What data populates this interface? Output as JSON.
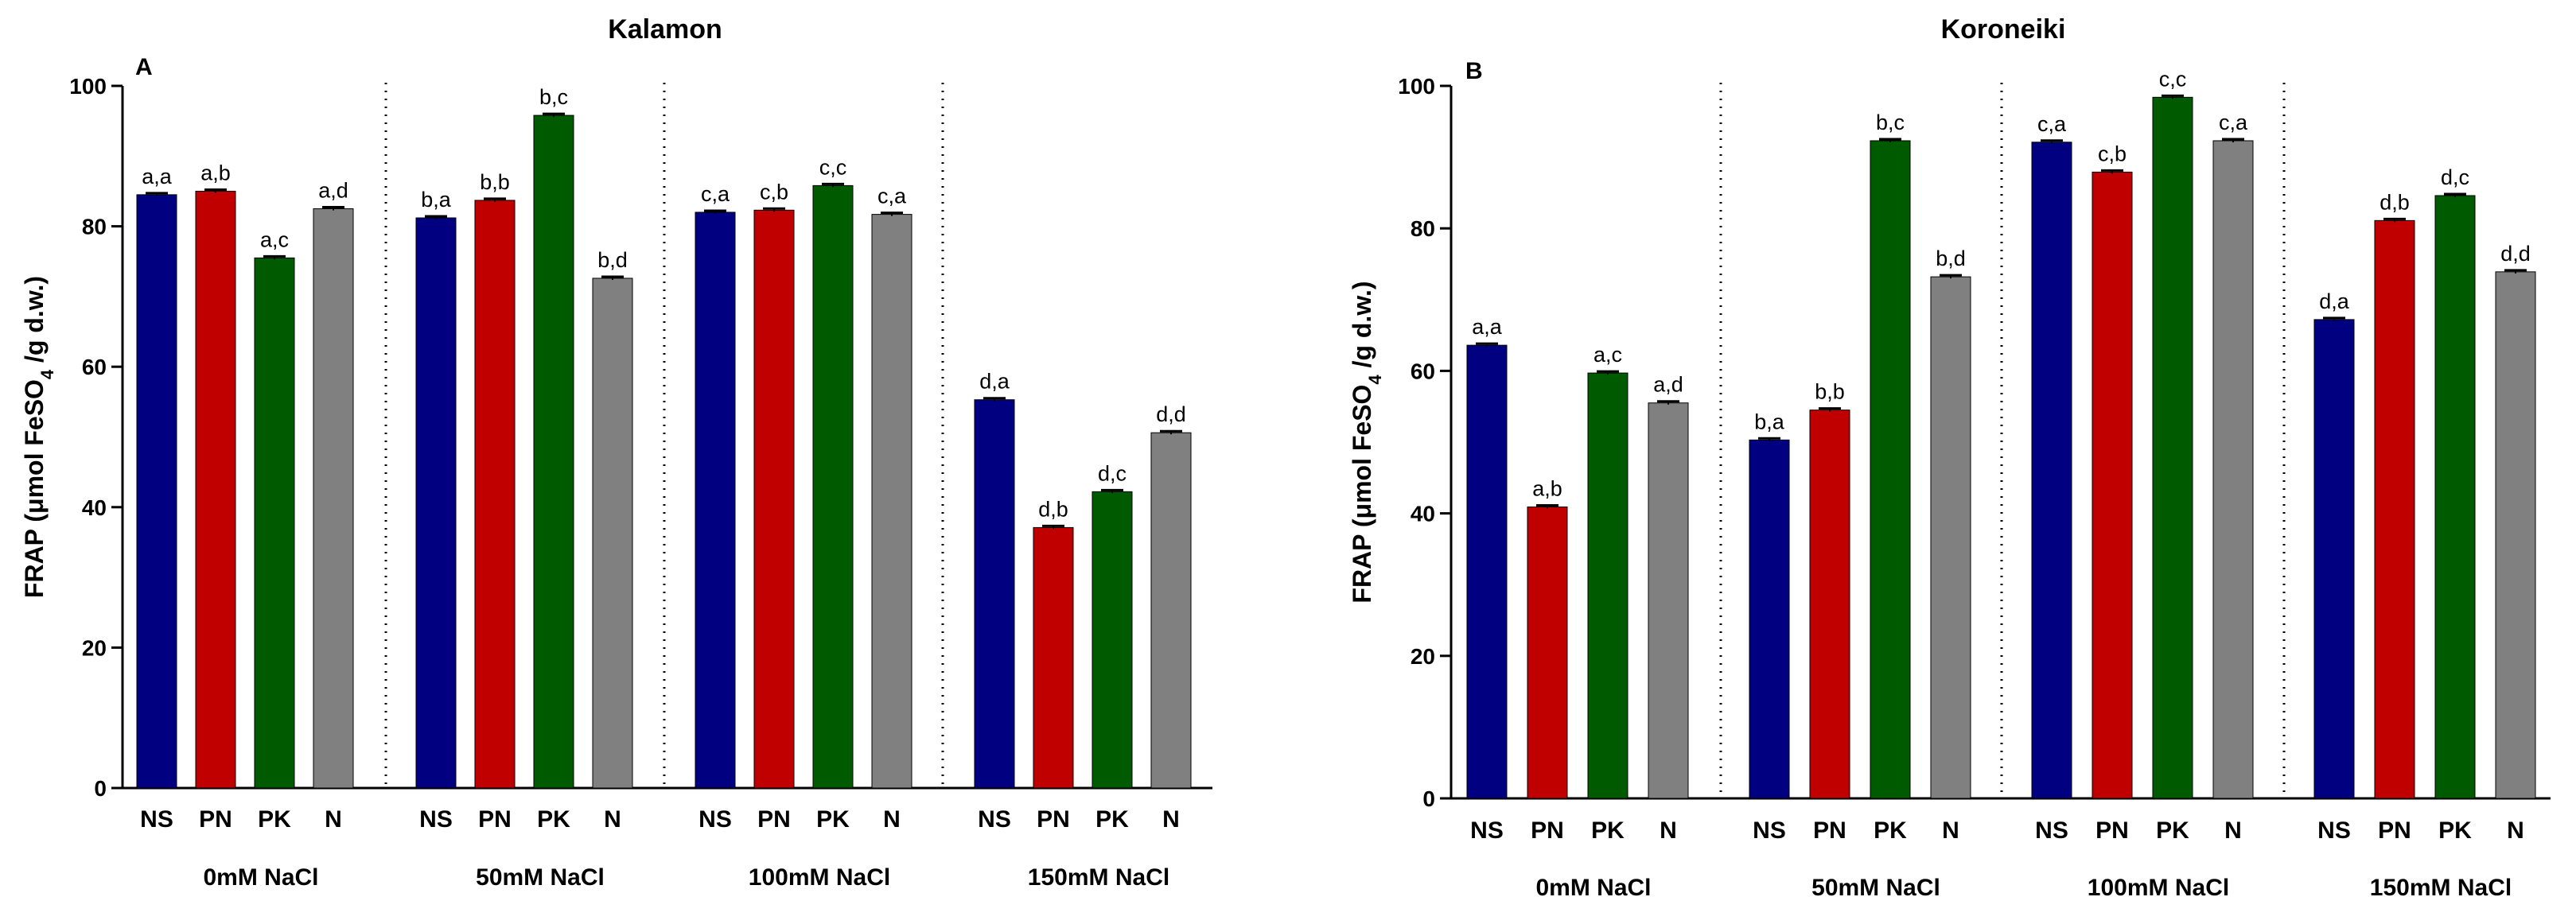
{
  "colors": {
    "NS": "#000080",
    "PN": "#c00000",
    "PK": "#005a00",
    "N": "#808080"
  },
  "chart_data": [
    {
      "type": "bar",
      "panel_letter": "A",
      "title": "Kalamon",
      "ylabel_parts": [
        "FRAP (μmol FeSO",
        "4",
        " /g d.w.)"
      ],
      "xlabel": "",
      "ylim": [
        0,
        100
      ],
      "yticks": [
        "0",
        "20",
        "40",
        "60",
        "80",
        "100"
      ],
      "categories": [
        "NS",
        "PN",
        "PK",
        "N"
      ],
      "groups": [
        {
          "name": "0mM NaCl",
          "values": [
            84.5,
            85.0,
            75.5,
            82.5
          ],
          "labels": [
            "a,a",
            "a,b",
            "a,c",
            "a,d"
          ]
        },
        {
          "name": "50mM NaCl",
          "values": [
            81.2,
            83.7,
            95.8,
            72.6
          ],
          "labels": [
            "b,a",
            "b,b",
            "b,c",
            "b,d"
          ]
        },
        {
          "name": "100mM NaCl",
          "values": [
            82.0,
            82.3,
            85.8,
            81.7
          ],
          "labels": [
            "c,a",
            "c,b",
            "c,c",
            "c,a"
          ]
        },
        {
          "name": "150mM NaCl",
          "values": [
            55.3,
            37.1,
            42.2,
            50.6
          ],
          "labels": [
            "d,a",
            "d,b",
            "d,c",
            "d,d"
          ]
        }
      ]
    },
    {
      "type": "bar",
      "panel_letter": "B",
      "title": "Koroneiki",
      "ylabel_parts": [
        "FRAP (μmol FeSO",
        "4",
        " /g d.w.)"
      ],
      "xlabel": "",
      "ylim": [
        0,
        100
      ],
      "yticks": [
        "0",
        "20",
        "40",
        "60",
        "80",
        "100"
      ],
      "categories": [
        "NS",
        "PN",
        "PK",
        "N"
      ],
      "groups": [
        {
          "name": "0mM NaCl",
          "values": [
            63.6,
            40.9,
            59.7,
            55.5
          ],
          "labels": [
            "a,a",
            "a,b",
            "a,c",
            "a,d"
          ]
        },
        {
          "name": "50mM NaCl",
          "values": [
            50.3,
            54.5,
            92.3,
            73.2
          ],
          "labels": [
            "b,a",
            "b,b",
            "b,c",
            "b,d"
          ]
        },
        {
          "name": "100mM NaCl",
          "values": [
            92.1,
            87.9,
            98.4,
            92.3
          ],
          "labels": [
            "c,a",
            "c,b",
            "c,c",
            "c,a"
          ]
        },
        {
          "name": "150mM NaCl",
          "values": [
            67.2,
            81.1,
            84.6,
            73.9
          ],
          "labels": [
            "d,a",
            "d,b",
            "d,c",
            "d,d"
          ]
        }
      ]
    }
  ]
}
